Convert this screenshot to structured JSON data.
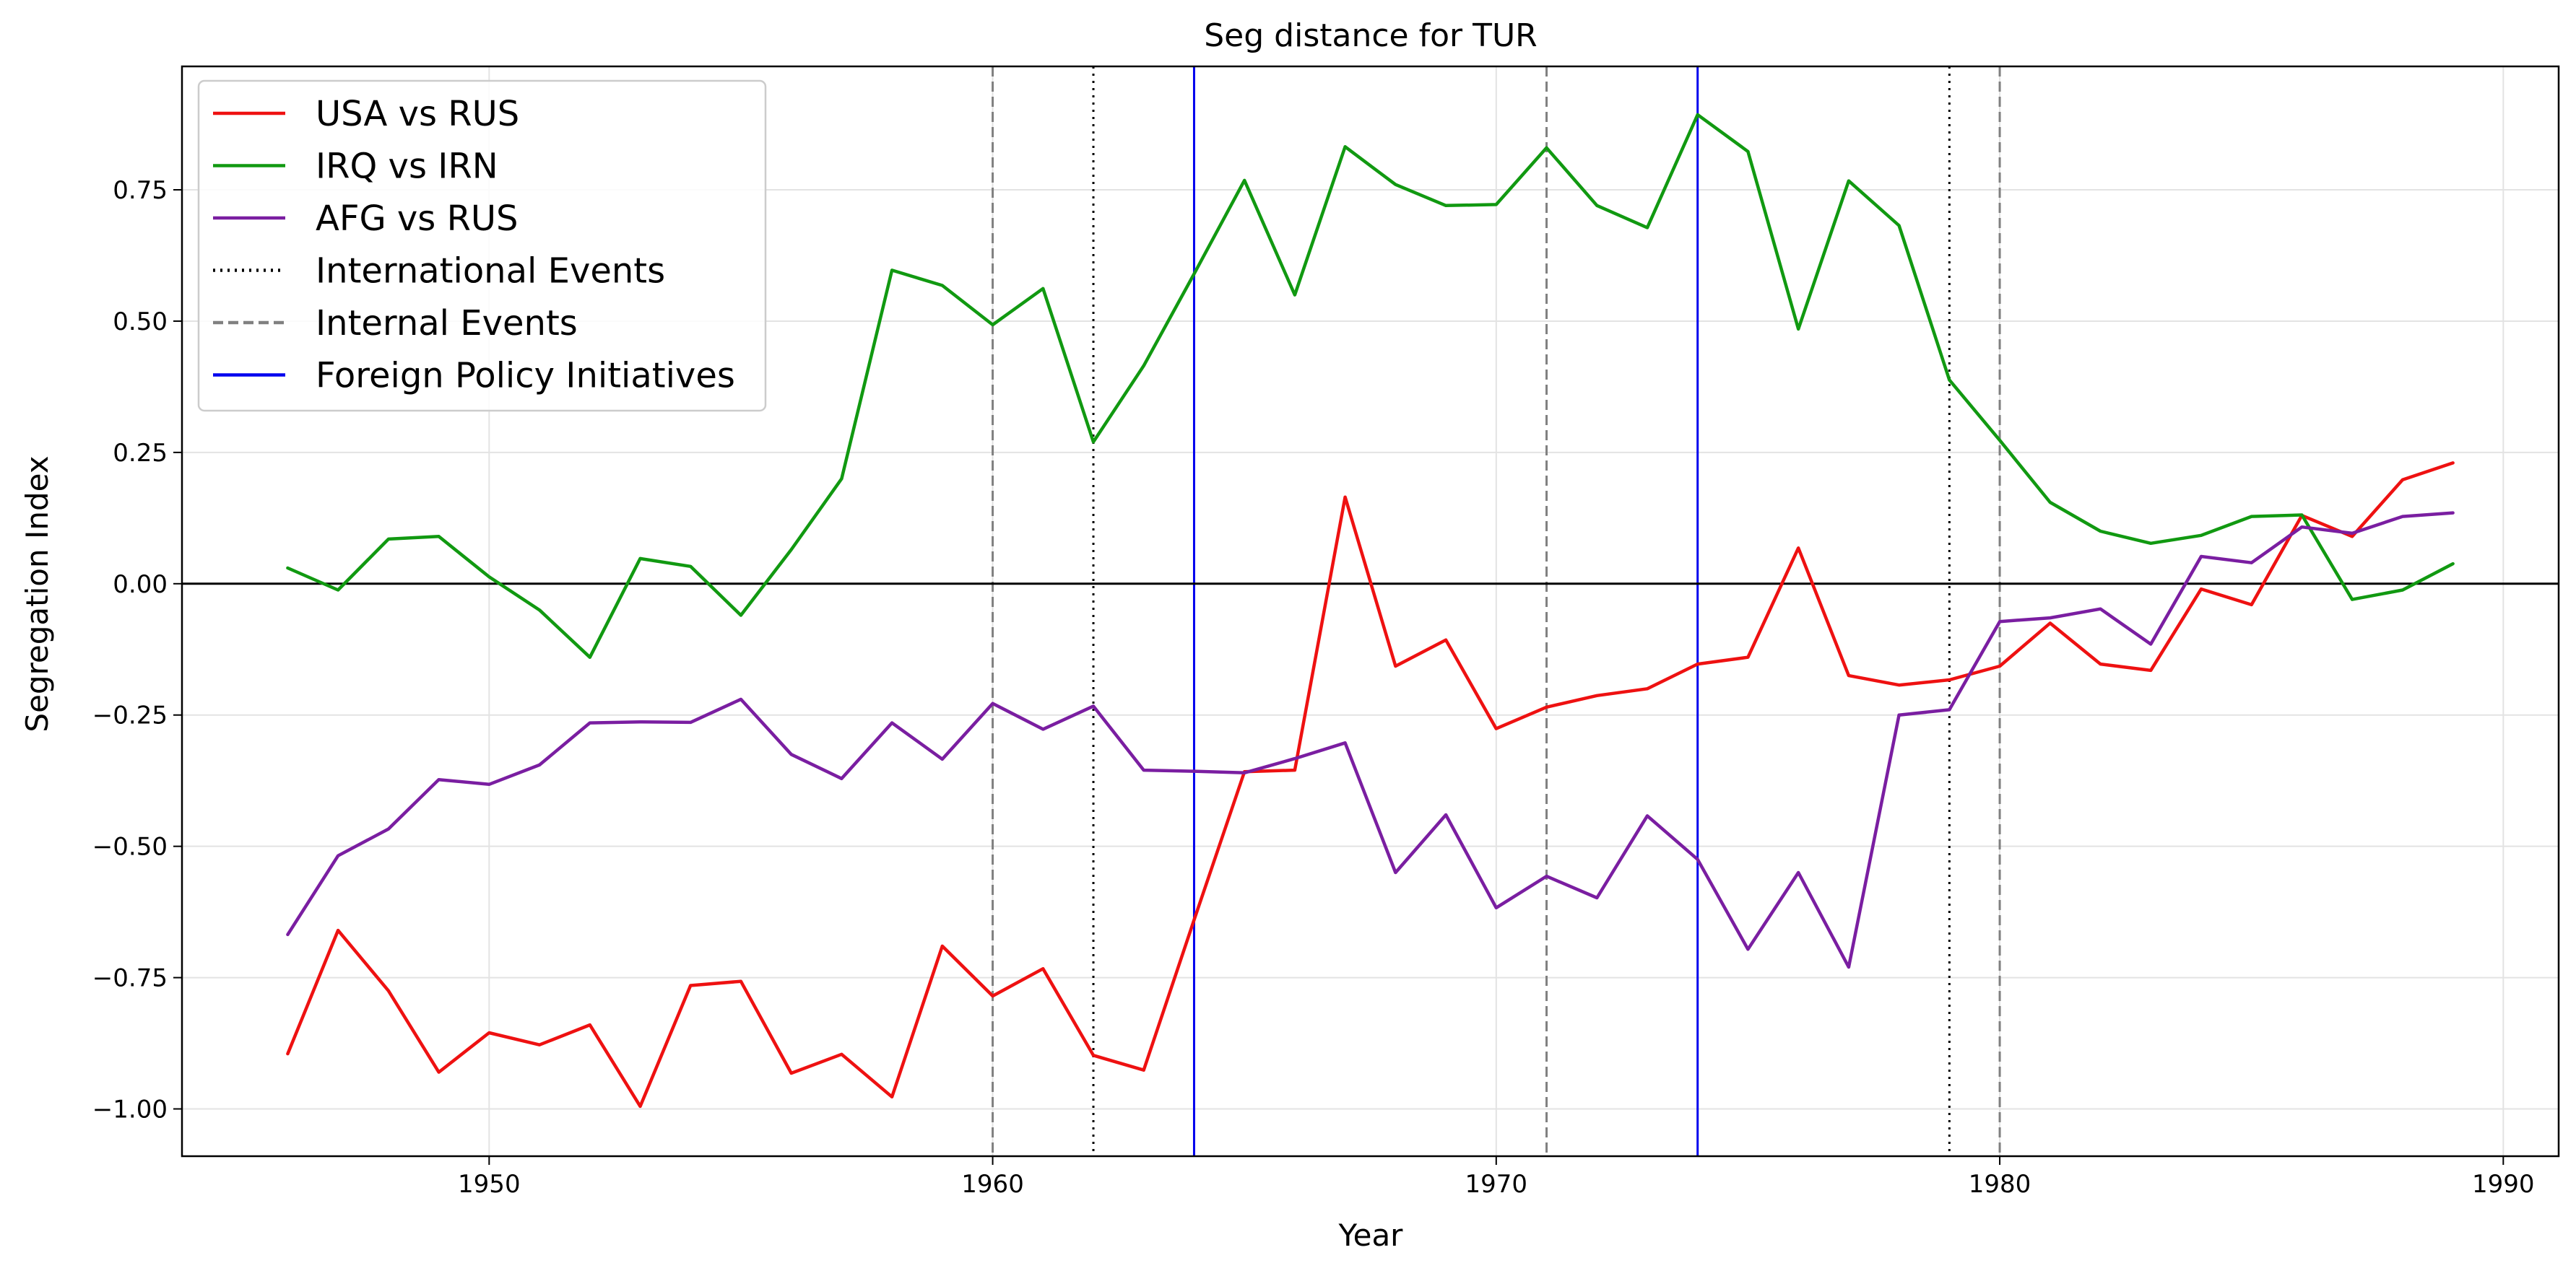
{
  "chart_data": {
    "type": "line",
    "title": "Seg distance for TUR",
    "xlabel": "Year",
    "ylabel": "Segregation Index",
    "xlim": [
      1943.9,
      1991.1
    ],
    "ylim": [
      -1.09,
      0.985
    ],
    "xticks": [
      1950,
      1960,
      1970,
      1980,
      1990
    ],
    "yticks": [
      -1.0,
      -0.75,
      -0.5,
      -0.25,
      0.0,
      0.25,
      0.5,
      0.75
    ],
    "ytick_labels": [
      "−1.00",
      "−0.75",
      "−0.50",
      "−0.25",
      "0.00",
      "0.25",
      "0.50",
      "0.75"
    ],
    "grid": true,
    "legend_position": "upper-left",
    "zero_line": 0,
    "x": [
      1946,
      1947,
      1948,
      1949,
      1950,
      1951,
      1952,
      1953,
      1954,
      1955,
      1956,
      1957,
      1958,
      1959,
      1960,
      1961,
      1962,
      1963,
      1964,
      1965,
      1966,
      1967,
      1968,
      1969,
      1970,
      1971,
      1972,
      1973,
      1974,
      1975,
      1976,
      1977,
      1978,
      1979,
      1980,
      1981,
      1982,
      1983,
      1984,
      1985,
      1986,
      1987,
      1988,
      1989
    ],
    "series": [
      {
        "name": "USA vs RUS",
        "color": "#ee1111",
        "values": [
          -0.895,
          -0.66,
          -0.775,
          -0.93,
          -0.855,
          -0.878,
          -0.84,
          -0.995,
          -0.765,
          -0.757,
          -0.932,
          -0.896,
          -0.977,
          -0.69,
          -0.785,
          -0.733,
          -0.898,
          -0.926,
          -0.64,
          -0.358,
          -0.355,
          0.165,
          -0.157,
          -0.107,
          -0.276,
          -0.235,
          -0.213,
          -0.2,
          -0.153,
          -0.14,
          0.068,
          -0.175,
          -0.193,
          -0.183,
          -0.157,
          -0.075,
          -0.153,
          -0.165,
          -0.01,
          -0.04,
          0.13,
          0.09,
          0.198,
          0.23
        ]
      },
      {
        "name": "IRQ vs IRN",
        "color": "#119911",
        "values": [
          0.03,
          -0.012,
          0.085,
          0.09,
          0.013,
          -0.05,
          -0.14,
          0.048,
          0.033,
          -0.06,
          0.065,
          0.2,
          0.597,
          0.568,
          0.493,
          0.562,
          0.27,
          0.415,
          0.59,
          0.768,
          0.55,
          0.832,
          0.76,
          0.72,
          0.722,
          0.83,
          0.72,
          0.678,
          0.893,
          0.823,
          0.485,
          0.767,
          0.682,
          0.388,
          0.273,
          0.155,
          0.1,
          0.077,
          0.092,
          0.128,
          0.131,
          -0.03,
          -0.012,
          0.038
        ]
      },
      {
        "name": "AFG vs RUS",
        "color": "#7a1ea1",
        "values": [
          -0.668,
          -0.518,
          -0.467,
          -0.373,
          -0.382,
          -0.345,
          -0.265,
          -0.263,
          -0.264,
          -0.22,
          -0.325,
          -0.371,
          -0.265,
          -0.334,
          -0.228,
          -0.277,
          -0.233,
          -0.355,
          -0.357,
          -0.36,
          -0.333,
          -0.303,
          -0.55,
          -0.44,
          -0.617,
          -0.557,
          -0.598,
          -0.442,
          -0.525,
          -0.696,
          -0.55,
          -0.73,
          -0.25,
          -0.24,
          -0.072,
          -0.065,
          -0.048,
          -0.115,
          0.052,
          0.04,
          0.108,
          0.096,
          0.128,
          0.135
        ]
      }
    ],
    "reference_lines": [
      {
        "category": "International Events",
        "style": "dotted",
        "color": "#000000",
        "years": [
          1962,
          1979
        ]
      },
      {
        "category": "Internal Events",
        "style": "dashed",
        "color": "#808080",
        "years": [
          1960,
          1971,
          1980
        ]
      },
      {
        "category": "Foreign Policy Initiatives",
        "style": "solid",
        "color": "#0000ee",
        "years": [
          1964,
          1974
        ]
      }
    ],
    "legend": [
      {
        "label": "USA vs RUS",
        "color": "#ee1111",
        "style": "solid"
      },
      {
        "label": "IRQ vs IRN",
        "color": "#119911",
        "style": "solid"
      },
      {
        "label": "AFG vs RUS",
        "color": "#7a1ea1",
        "style": "solid"
      },
      {
        "label": "International Events",
        "color": "#000000",
        "style": "dotted"
      },
      {
        "label": "Internal Events",
        "color": "#808080",
        "style": "dashed"
      },
      {
        "label": "Foreign Policy Initiatives",
        "color": "#0000ee",
        "style": "solid"
      }
    ]
  }
}
